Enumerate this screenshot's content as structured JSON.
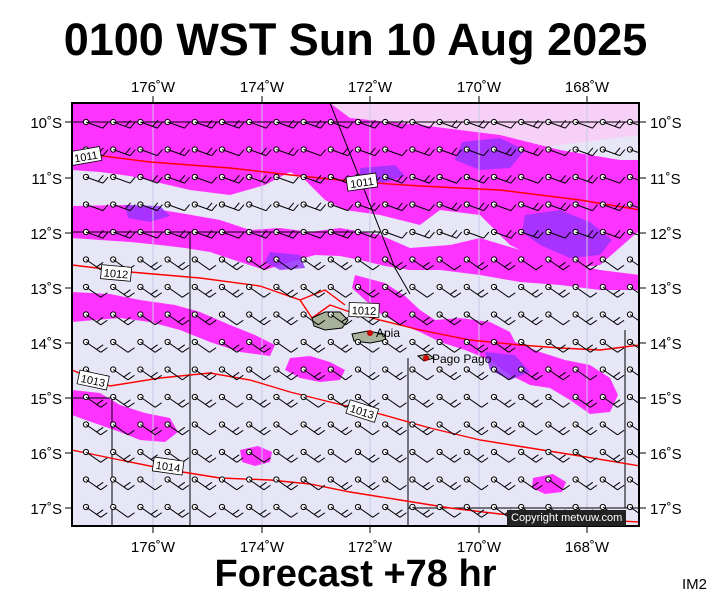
{
  "title": "0100 WST Sun 10 Aug 2025",
  "forecast_label": "Forecast +78 hr",
  "corner_code": "IM2",
  "copyright": "Copyright metvuw.com",
  "colors": {
    "sea": "#e6e6f7",
    "rain_light": "#ff33ff",
    "rain_heavy": "#9933ff",
    "rain_pale": "#f7d0f7",
    "isobar": "#ff0000",
    "land": "#a8b29a",
    "frame": "#000000"
  },
  "lon_labels": [
    "176˚W",
    "174˚W",
    "172˚W",
    "170˚W",
    "168˚W"
  ],
  "lat_labels": [
    "10˚S",
    "11˚S",
    "12˚S",
    "13˚S",
    "14˚S",
    "15˚S",
    "16˚S",
    "17˚S"
  ],
  "isobar_labels": [
    "1011",
    "1011",
    "1012",
    "1012",
    "1013",
    "1013",
    "1014"
  ],
  "places": [
    {
      "name": "Apia"
    },
    {
      "name": "Pago Pago"
    }
  ],
  "wind": {
    "icon": "wind-barb-icon",
    "description": "Wind barbs over a regular grid, mostly from the east-southeast"
  }
}
